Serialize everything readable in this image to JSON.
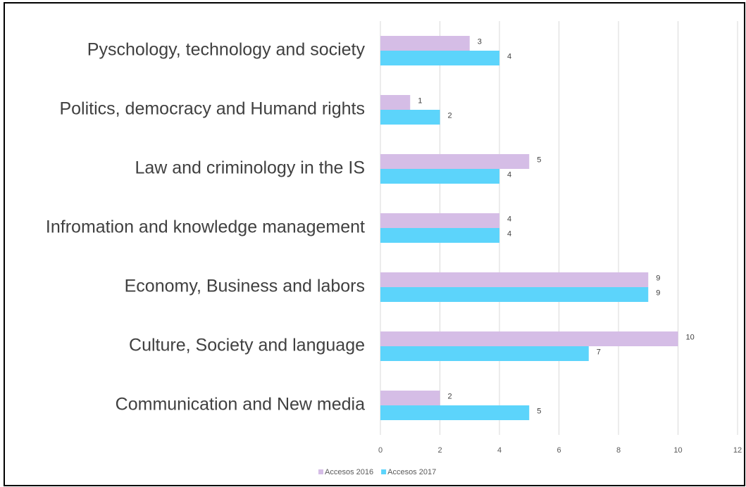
{
  "chart_data": {
    "type": "bar",
    "orientation": "horizontal",
    "categories": [
      "Pyschology, technology and society",
      "Politics, democracy and Humand rights",
      "Law and criminology in the IS",
      "Infromation and knowledge management",
      "Economy, Business and labors",
      "Culture, Society and language",
      "Communication and New media"
    ],
    "series": [
      {
        "name": "Accesos 2016",
        "color": "#d5bde6",
        "values": [
          3,
          1,
          5,
          4,
          9,
          10,
          2
        ]
      },
      {
        "name": "Accesos 2017",
        "color": "#5cd4fb",
        "values": [
          4,
          2,
          4,
          4,
          9,
          7,
          5
        ]
      }
    ],
    "xlim": [
      0,
      12
    ],
    "xticks": [
      0,
      2,
      4,
      6,
      8,
      10,
      12
    ],
    "grid": true,
    "legend": "bottom"
  }
}
